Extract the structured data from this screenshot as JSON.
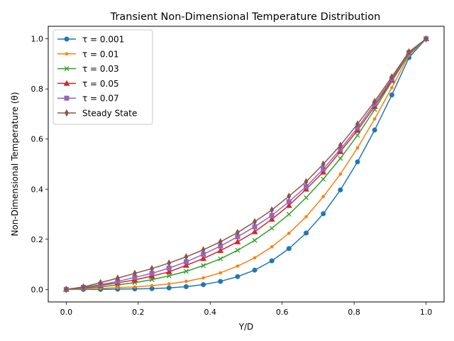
{
  "chart_data": {
    "type": "line",
    "title": "Transient Non-Dimensional Temperature Distribution",
    "xlabel": "Y/D",
    "ylabel": "Non-Dimensional Temperature (θ)",
    "xlim": [
      -0.05,
      1.05
    ],
    "ylim": [
      -0.05,
      1.05
    ],
    "xticks": [
      0.0,
      0.2,
      0.4,
      0.6,
      0.8,
      1.0
    ],
    "xtick_labels": [
      "0.0",
      "0.2",
      "0.4",
      "0.6",
      "0.8",
      "1.0"
    ],
    "yticks": [
      0.0,
      0.2,
      0.4,
      0.6,
      0.8,
      1.0
    ],
    "ytick_labels": [
      "0.0",
      "0.2",
      "0.4",
      "0.6",
      "0.8",
      "1.0"
    ],
    "grid": false,
    "legend_position": "upper-left",
    "x": [
      0.0,
      0.0476,
      0.0952,
      0.1429,
      0.1905,
      0.2381,
      0.2857,
      0.3333,
      0.381,
      0.4286,
      0.4762,
      0.5238,
      0.5714,
      0.619,
      0.6667,
      0.7143,
      0.7619,
      0.8095,
      0.8571,
      0.9048,
      0.9524,
      1.0
    ],
    "series": [
      {
        "name": "τ = 0.001",
        "color": "#1f77b4",
        "marker": "circle",
        "values": [
          0.0,
          0.0,
          0.0,
          0.001,
          0.002,
          0.003,
          0.006,
          0.011,
          0.019,
          0.032,
          0.051,
          0.077,
          0.114,
          0.163,
          0.225,
          0.302,
          0.397,
          0.509,
          0.636,
          0.776,
          0.925,
          1.0
        ]
      },
      {
        "name": "τ = 0.01",
        "color": "#ff7f0e",
        "marker": "point",
        "values": [
          0.0,
          0.002,
          0.004,
          0.007,
          0.01,
          0.015,
          0.022,
          0.032,
          0.046,
          0.066,
          0.093,
          0.126,
          0.17,
          0.224,
          0.29,
          0.37,
          0.46,
          0.565,
          0.68,
          0.805,
          0.935,
          1.0
        ]
      },
      {
        "name": "τ = 0.03",
        "color": "#2ca02c",
        "marker": "x",
        "values": [
          0.0,
          0.005,
          0.01,
          0.018,
          0.027,
          0.039,
          0.054,
          0.072,
          0.095,
          0.122,
          0.156,
          0.196,
          0.244,
          0.3,
          0.366,
          0.44,
          0.523,
          0.615,
          0.718,
          0.83,
          0.94,
          1.0
        ]
      },
      {
        "name": "τ = 0.05",
        "color": "#d62728",
        "marker": "triangle",
        "values": [
          0.0,
          0.007,
          0.016,
          0.026,
          0.038,
          0.053,
          0.07,
          0.096,
          0.123,
          0.155,
          0.19,
          0.23,
          0.28,
          0.335,
          0.4,
          0.468,
          0.55,
          0.635,
          0.73,
          0.835,
          0.945,
          1.0
        ]
      },
      {
        "name": "τ = 0.07",
        "color": "#9467bd",
        "marker": "square",
        "values": [
          0.0,
          0.008,
          0.019,
          0.032,
          0.048,
          0.064,
          0.085,
          0.11,
          0.14,
          0.173,
          0.21,
          0.25,
          0.295,
          0.35,
          0.41,
          0.48,
          0.56,
          0.645,
          0.74,
          0.84,
          0.945,
          1.0
        ]
      },
      {
        "name": "Steady State",
        "color": "#8c564b",
        "marker": "thin-diamond",
        "values": [
          0.0,
          0.01,
          0.027,
          0.045,
          0.064,
          0.083,
          0.105,
          0.13,
          0.158,
          0.19,
          0.227,
          0.27,
          0.317,
          0.372,
          0.43,
          0.5,
          0.575,
          0.66,
          0.75,
          0.848,
          0.948,
          1.0
        ]
      }
    ]
  }
}
